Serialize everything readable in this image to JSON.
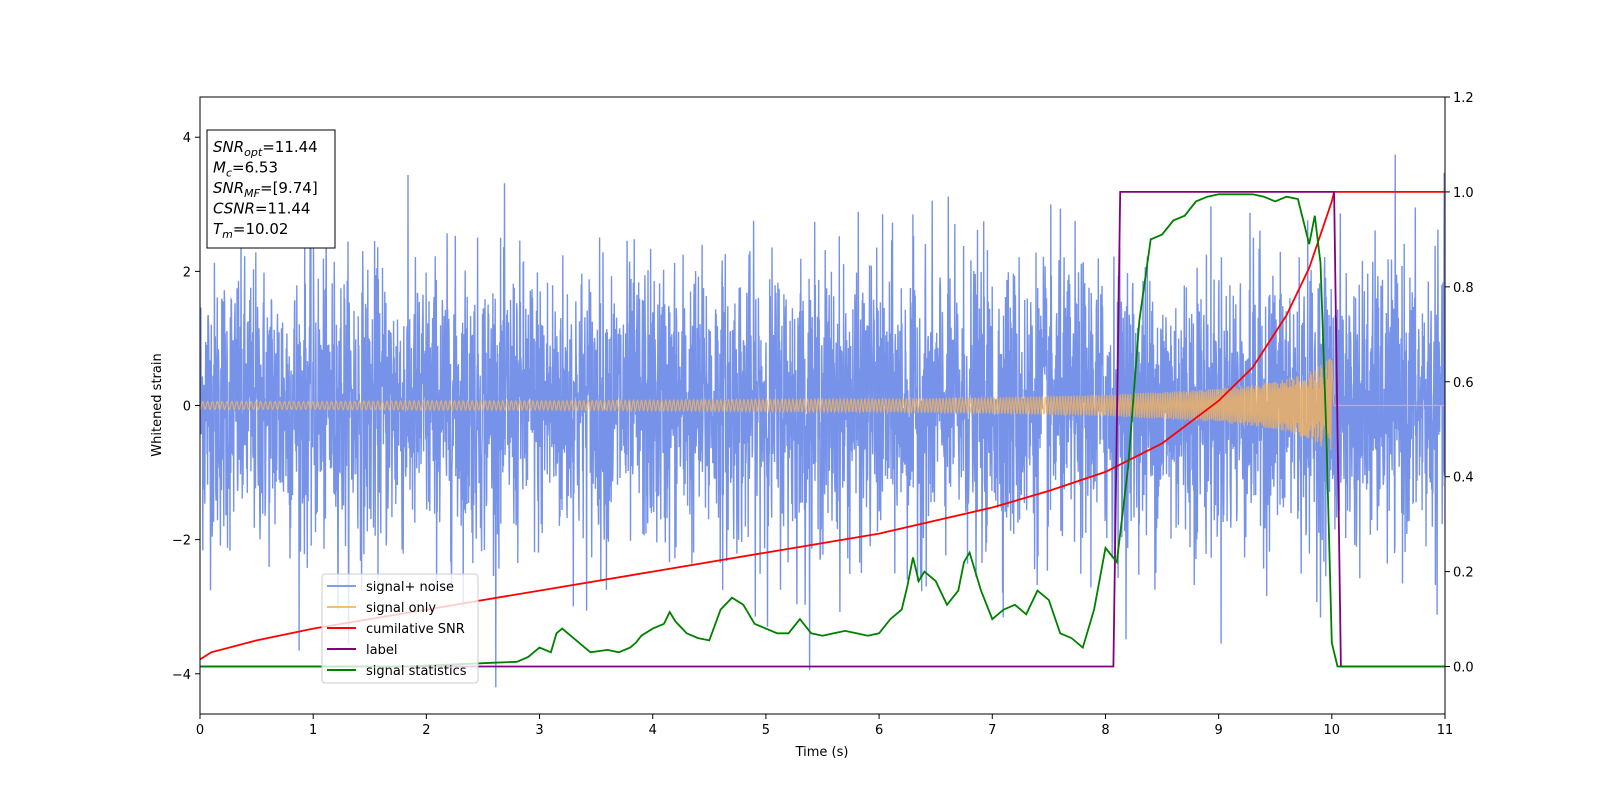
{
  "chart_data": {
    "type": "line",
    "xlabel": "Time (s)",
    "ylabel": "Whitened strain",
    "xlim": [
      0,
      11
    ],
    "ylim": [
      -4.6,
      4.6
    ],
    "y2lim": [
      -0.1,
      1.2
    ],
    "x_ticks": [
      "0",
      "1",
      "2",
      "3",
      "4",
      "5",
      "6",
      "7",
      "8",
      "9",
      "10",
      "11"
    ],
    "y_ticks": [
      "4",
      "2",
      "0",
      "−2",
      "−4"
    ],
    "y_tick_values": [
      4,
      2,
      0,
      -2,
      -4
    ],
    "y2_ticks": [
      "1.2",
      "1.0",
      "0.8",
      "0.6",
      "0.4",
      "0.2",
      "0.0"
    ],
    "y2_tick_values": [
      1.2,
      1.0,
      0.8,
      0.6,
      0.4,
      0.2,
      0.0
    ],
    "grid": false,
    "legend_position": "lower-left",
    "annotation": {
      "lines": [
        {
          "base": "SNR",
          "sub": "opt",
          "value": "=11.44"
        },
        {
          "base": "M",
          "sub": "c",
          "value": "=6.53"
        },
        {
          "base": "SNR",
          "sub": "MF",
          "value": "=[9.74]"
        },
        {
          "base": "CSNR",
          "sub": "",
          "value": "=11.44"
        },
        {
          "base": "T",
          "sub": "m",
          "value": "=10.02"
        }
      ]
    },
    "series": [
      {
        "name": "signal+ noise",
        "axis": "left",
        "color": "#6f8ce8",
        "kind": "noise",
        "noise_sigma": 1.0,
        "peak_max": 4.2,
        "x_range": [
          0,
          11
        ]
      },
      {
        "name": "signal only",
        "axis": "left",
        "color": "#f5b35a",
        "kind": "chirp_envelope",
        "x": [
          0,
          1,
          2,
          3,
          4,
          5,
          6,
          7,
          8,
          8.5,
          9,
          9.5,
          9.8,
          10.0,
          10.02,
          11
        ],
        "amplitude": [
          0.06,
          0.06,
          0.07,
          0.07,
          0.08,
          0.09,
          0.1,
          0.12,
          0.16,
          0.2,
          0.25,
          0.35,
          0.5,
          0.72,
          0.0,
          0.0
        ]
      },
      {
        "name": "cumilative SNR",
        "axis": "right",
        "color": "#ff0000",
        "x": [
          0,
          0.1,
          0.5,
          1,
          2,
          3,
          4,
          5,
          6,
          7,
          7.5,
          8,
          8.5,
          9,
          9.3,
          9.6,
          9.8,
          10.0,
          10.02,
          11
        ],
        "values": [
          0.015,
          0.03,
          0.055,
          0.08,
          0.12,
          0.16,
          0.2,
          0.24,
          0.28,
          0.335,
          0.37,
          0.41,
          0.47,
          0.56,
          0.63,
          0.74,
          0.84,
          0.98,
          1.0,
          1.0
        ]
      },
      {
        "name": "label",
        "axis": "right",
        "color": "#800080",
        "x": [
          0,
          8.07,
          8.13,
          10.02,
          10.08,
          11
        ],
        "values": [
          0,
          0,
          1,
          1,
          0,
          0
        ]
      },
      {
        "name": "signal statistics",
        "axis": "right",
        "color": "#008000",
        "x": [
          0,
          1,
          1.8,
          2.3,
          2.6,
          2.8,
          2.9,
          3.0,
          3.1,
          3.15,
          3.2,
          3.3,
          3.4,
          3.45,
          3.6,
          3.7,
          3.8,
          3.85,
          3.9,
          4.0,
          4.1,
          4.15,
          4.2,
          4.3,
          4.4,
          4.5,
          4.6,
          4.7,
          4.8,
          4.9,
          5.0,
          5.1,
          5.2,
          5.3,
          5.4,
          5.5,
          5.6,
          5.7,
          5.8,
          5.9,
          6.0,
          6.1,
          6.2,
          6.25,
          6.3,
          6.35,
          6.4,
          6.5,
          6.6,
          6.7,
          6.75,
          6.8,
          6.9,
          7.0,
          7.1,
          7.2,
          7.3,
          7.4,
          7.5,
          7.6,
          7.7,
          7.8,
          7.9,
          8.0,
          8.1,
          8.2,
          8.3,
          8.4,
          8.5,
          8.6,
          8.7,
          8.8,
          8.9,
          9.0,
          9.1,
          9.2,
          9.3,
          9.4,
          9.5,
          9.6,
          9.7,
          9.8,
          9.85,
          9.9,
          9.95,
          10.0,
          10.05,
          10.1,
          10.3,
          11
        ],
        "values": [
          0.0,
          0.0,
          0.0,
          0.005,
          0.008,
          0.01,
          0.02,
          0.04,
          0.03,
          0.07,
          0.08,
          0.06,
          0.04,
          0.03,
          0.035,
          0.03,
          0.04,
          0.05,
          0.065,
          0.08,
          0.09,
          0.115,
          0.095,
          0.07,
          0.06,
          0.055,
          0.12,
          0.145,
          0.13,
          0.09,
          0.08,
          0.07,
          0.07,
          0.1,
          0.07,
          0.065,
          0.07,
          0.075,
          0.07,
          0.065,
          0.07,
          0.1,
          0.12,
          0.17,
          0.23,
          0.18,
          0.2,
          0.18,
          0.13,
          0.16,
          0.22,
          0.24,
          0.16,
          0.1,
          0.12,
          0.13,
          0.11,
          0.16,
          0.14,
          0.07,
          0.06,
          0.04,
          0.12,
          0.25,
          0.22,
          0.42,
          0.73,
          0.9,
          0.91,
          0.94,
          0.95,
          0.98,
          0.99,
          0.995,
          0.995,
          0.995,
          0.995,
          0.99,
          0.98,
          0.99,
          0.985,
          0.89,
          0.95,
          0.85,
          0.5,
          0.05,
          0.0,
          0.0,
          0.0,
          0.0
        ]
      }
    ]
  }
}
